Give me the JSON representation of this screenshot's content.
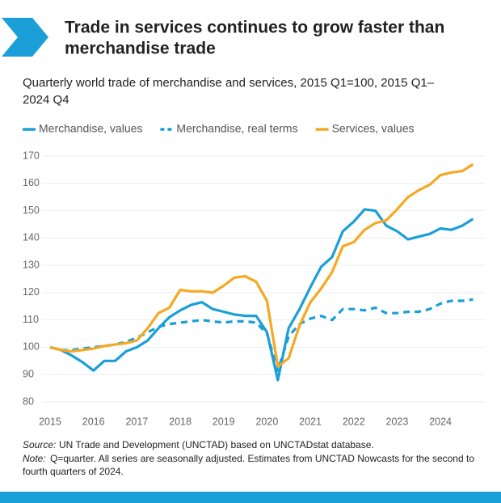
{
  "chart_data": {
    "type": "line",
    "title": [
      "Trade in services continues to grow faster than",
      "merchandise trade"
    ],
    "subtitle": [
      "Quarterly world trade of merchandise and services, 2015 Q1=100, 2015 Q1–",
      "2024 Q4"
    ],
    "categories": [
      "2015",
      null,
      null,
      null,
      "2016",
      null,
      null,
      null,
      "2017",
      null,
      null,
      null,
      "2018",
      null,
      null,
      null,
      "2019",
      null,
      null,
      null,
      "2020",
      null,
      null,
      null,
      "2021",
      null,
      null,
      null,
      "2022",
      null,
      null,
      null,
      "2023",
      null,
      null,
      null,
      "2024",
      null,
      null,
      null
    ],
    "series": [
      {
        "name": "Merchandise, values",
        "color": "#1a9fd9",
        "line_style": "solid",
        "values": [
          100,
          99,
          97,
          94.5,
          91.5,
          95,
          95,
          98.5,
          100,
          102.5,
          107,
          111,
          113.5,
          115.5,
          116.5,
          114,
          113,
          112,
          111.5,
          111.5,
          105.5,
          88,
          107,
          114,
          122,
          129.5,
          133,
          142.5,
          146,
          150.5,
          150,
          144.5,
          142.5,
          139.5,
          140.5,
          141.5,
          143.5,
          143,
          144.5,
          147
        ]
      },
      {
        "name": "Merchandise, real terms",
        "color": "#1a9fd9",
        "line_style": "dashed",
        "values": [
          100,
          99,
          99,
          99.5,
          100,
          100.5,
          101,
          102,
          103.5,
          105.5,
          107.5,
          108.5,
          109,
          109.5,
          110,
          109.5,
          109,
          109.5,
          109.5,
          109,
          105,
          91.5,
          104,
          108.5,
          110.5,
          111.5,
          110,
          114,
          114,
          113.5,
          114.5,
          112.5,
          112.5,
          113,
          113,
          114,
          116,
          117,
          117,
          117.5
        ]
      },
      {
        "name": "Services, values",
        "color": "#f6a821",
        "line_style": "solid",
        "values": [
          100,
          99,
          98.5,
          99,
          99.5,
          100.5,
          101,
          101.5,
          102.5,
          107,
          112.5,
          114.5,
          121,
          120.5,
          120.5,
          120,
          122.5,
          125.5,
          126,
          124,
          117,
          93,
          96,
          108,
          116.5,
          121.5,
          127.5,
          137,
          138.5,
          143,
          145.5,
          146.5,
          150.5,
          155,
          157.5,
          159.5,
          163,
          164,
          164.5,
          167
        ]
      }
    ],
    "ylim": [
      80,
      170
    ],
    "yticks": [
      80,
      90,
      100,
      110,
      120,
      130,
      140,
      150,
      160,
      170
    ],
    "grid": true,
    "source_label": "Source:",
    "source": "UN Trade and Development (UNCTAD) based on UNCTADstat database.",
    "note_label": "Note:",
    "note": [
      "Q=quarter. All series are seasonally adjusted. Estimates from UNCTAD Nowcasts for the second to",
      "fourth quarters of 2024."
    ]
  }
}
